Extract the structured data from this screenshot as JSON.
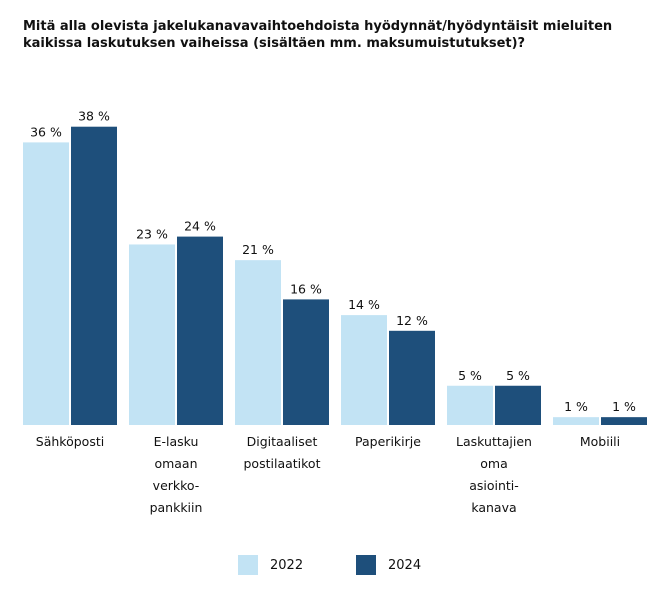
{
  "title": "Mitä alla olevista jakelukanavavaihtoehdoista hyödynnät/hyödyntäisit mieluiten kaikissa laskutuksen vaiheissa (sisältäen mm. maksumuistutukset)?",
  "chart_data": {
    "type": "bar",
    "title": "Mitä alla olevista jakelukanavavaihtoehdoista hyödynnät/hyödyntäisit mieluiten kaikissa laskutuksen vaiheissa (sisältäen mm. maksumuistutukset)?",
    "categories": [
      [
        "Sähköposti"
      ],
      [
        "E-lasku",
        "omaan",
        "verkko-",
        "pankkiin"
      ],
      [
        "Digitaaliset",
        "postilaatikot"
      ],
      [
        "Paperikirje"
      ],
      [
        "Laskuttajien",
        "oma",
        "asiointi-",
        "kanava"
      ],
      [
        "Mobiili"
      ]
    ],
    "series": [
      {
        "name": "2022",
        "color": "#c2e3f4",
        "values": [
          36,
          23,
          21,
          14,
          5,
          1
        ]
      },
      {
        "name": "2024",
        "color": "#1e4f7b",
        "values": [
          38,
          24,
          16,
          12,
          5,
          1
        ]
      }
    ],
    "value_suffix": " %",
    "ylim": [
      0,
      40
    ],
    "grid": false,
    "legend_position": "bottom-center"
  }
}
